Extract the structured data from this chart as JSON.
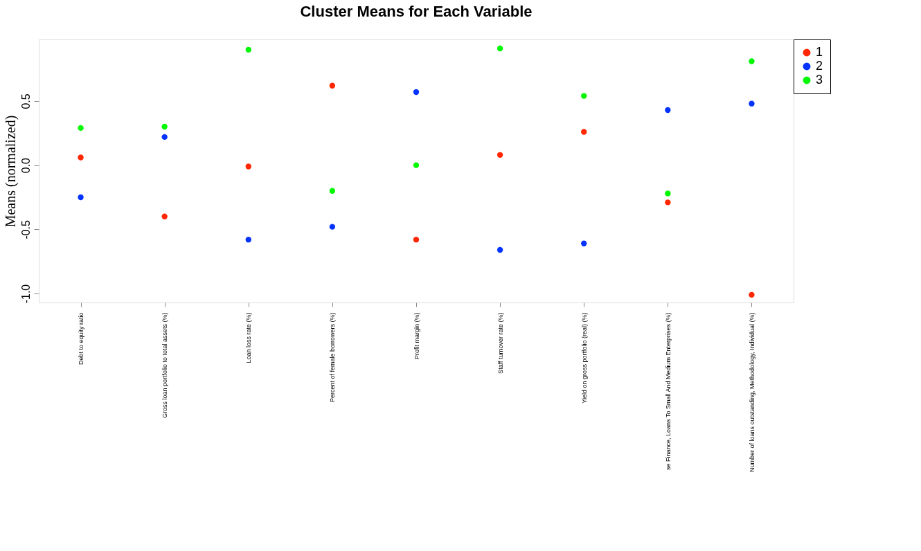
{
  "chart_data": {
    "type": "scatter",
    "title": "Cluster Means for Each Variable",
    "ylabel": "Means (normalized)",
    "categories": [
      "Debt to equity ratio",
      "Gross loan portfolio to total assets (%)",
      "Loan loss rate (%)",
      "Percent of female borrowers (%)",
      "Profit margin (%)",
      "Staff turnover rate (%)",
      "Yield on gross portfolio (real) (%)",
      "se Finance, Loans To Small And Medium Enterprises (%)",
      "Number of loans outstanding, Methodology, Individual (%)"
    ],
    "series": [
      {
        "name": "1",
        "color": "#ff2600",
        "values": [
          0.06,
          -0.4,
          -0.01,
          0.62,
          -0.58,
          0.08,
          0.26,
          -0.29,
          -1.01
        ]
      },
      {
        "name": "2",
        "color": "#0433ff",
        "values": [
          -0.25,
          0.22,
          -0.58,
          -0.48,
          0.57,
          -0.66,
          -0.61,
          0.43,
          0.48
        ]
      },
      {
        "name": "3",
        "color": "#00f900",
        "values": [
          0.29,
          0.3,
          0.9,
          -0.2,
          0.0,
          0.91,
          0.54,
          -0.22,
          0.81
        ]
      }
    ],
    "ylim": [
      -1.07,
      0.98
    ],
    "yticks": [
      {
        "value": -1.0,
        "label": "-1.0"
      },
      {
        "value": -0.5,
        "label": "-0.5"
      },
      {
        "value": 0,
        "label": "0.0"
      },
      {
        "value": 0.5,
        "label": "0.5"
      }
    ],
    "legend": "right",
    "grid": false,
    "marker": "circle"
  }
}
